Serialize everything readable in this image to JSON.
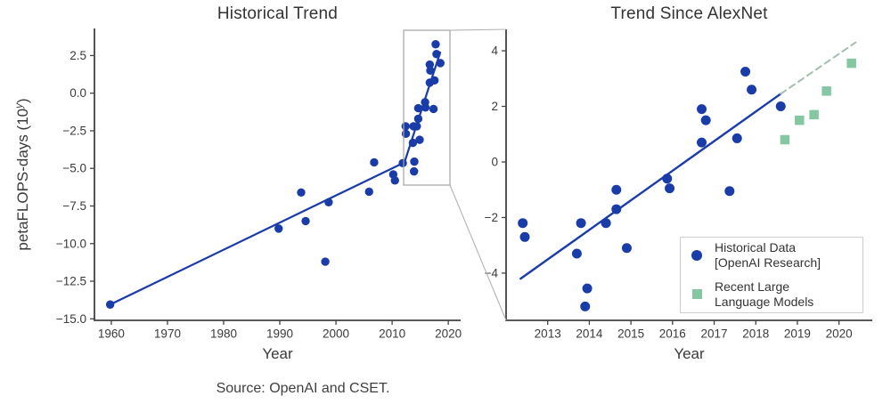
{
  "figure": {
    "source_note": "Source: OpenAI and CSET.",
    "ylabel": {
      "prefix": "petaFLOPS-days (10",
      "sup": "y",
      "suffix": ")"
    }
  },
  "colors": {
    "dot_blue": "#1a3ca8",
    "trend_blue": "#1a3ca8",
    "square_green": "#85c6a3",
    "dashed_green": "#a2bfae",
    "spine": "#424242",
    "tick_text": "#3a3a3a",
    "inset_box": "#a3a3a3",
    "connector": "#b3b3b3",
    "legend_border": "#cccccc"
  },
  "legend": {
    "position": "lower right",
    "items": [
      {
        "marker": "circle",
        "color": "#1a3ca8",
        "lines": [
          "Historical Data",
          "[OpenAI Research]"
        ]
      },
      {
        "marker": "square",
        "color": "#85c6a3",
        "lines": [
          "Recent Large",
          "Language Models"
        ]
      }
    ]
  },
  "chart_data": [
    {
      "type": "scatter",
      "title": "Historical Trend",
      "xlabel": "Year",
      "ylabel": "petaFLOPS-days (10^y)",
      "grid": false,
      "xlim": [
        1957.0,
        2022.2
      ],
      "ylim": [
        -15.1,
        4.3
      ],
      "xticks": [
        {
          "v": 1960,
          "label": "1960"
        },
        {
          "v": 1970,
          "label": "1970"
        },
        {
          "v": 1980,
          "label": "1980"
        },
        {
          "v": 1990,
          "label": "1990"
        },
        {
          "v": 2000,
          "label": "2000"
        },
        {
          "v": 2010,
          "label": "2010"
        },
        {
          "v": 2020,
          "label": "2020"
        }
      ],
      "yticks": [
        {
          "v": 2.5,
          "label": "2.5"
        },
        {
          "v": 0,
          "label": "0.0"
        },
        {
          "v": -2.5,
          "label": "−2.5"
        },
        {
          "v": -5,
          "label": "−5.0"
        },
        {
          "v": -7.5,
          "label": "−7.5"
        },
        {
          "v": -10,
          "label": "−10.0"
        },
        {
          "v": -12.5,
          "label": "−12.5"
        },
        {
          "v": -15,
          "label": "−15.0"
        }
      ],
      "series": [
        {
          "name": "Historical Data [OpenAI Research]",
          "marker": "circle",
          "color": "#1a3ca8",
          "size": 4.7,
          "points": [
            [
              1959.8,
              -14.05
            ],
            [
              1989.8,
              -9.0
            ],
            [
              1993.8,
              -6.6
            ],
            [
              1994.6,
              -8.5
            ],
            [
              1998.1,
              -11.2
            ],
            [
              1998.7,
              -7.25
            ],
            [
              2005.9,
              -6.55
            ],
            [
              2006.8,
              -4.6
            ],
            [
              2010.2,
              -5.4
            ],
            [
              2010.5,
              -5.8
            ],
            [
              2011.9,
              -4.65
            ],
            [
              2012.4,
              -2.2
            ],
            [
              2012.45,
              -2.7
            ],
            [
              2013.7,
              -3.3
            ],
            [
              2013.8,
              -2.2
            ],
            [
              2013.9,
              -5.2
            ],
            [
              2013.95,
              -4.55
            ],
            [
              2014.4,
              -2.2
            ],
            [
              2014.65,
              -1.0
            ],
            [
              2014.65,
              -1.7
            ],
            [
              2014.9,
              -3.1
            ],
            [
              2015.87,
              -0.6
            ],
            [
              2015.93,
              -0.95
            ],
            [
              2016.7,
              0.7
            ],
            [
              2016.7,
              1.9
            ],
            [
              2016.8,
              1.5
            ],
            [
              2017.37,
              -1.05
            ],
            [
              2017.55,
              0.85
            ],
            [
              2017.75,
              3.25
            ],
            [
              2017.9,
              2.6
            ],
            [
              2018.6,
              2.0
            ]
          ]
        }
      ],
      "trend": [
        {
          "from": [
            1959.8,
            -14.05
          ],
          "to": [
            2012.2,
            -4.6
          ],
          "dash": false,
          "color": "#1a3ca8",
          "width": 2.2
        },
        {
          "from": [
            2012.2,
            -4.6
          ],
          "to": [
            2018.55,
            2.7
          ],
          "dash": false,
          "color": "#1a3ca8",
          "width": 2.2
        }
      ],
      "inset_box": {
        "x0": 2012.05,
        "x1": 2020.3,
        "y_top": 4.18,
        "y_bottom": -6.11
      }
    },
    {
      "type": "scatter",
      "title": "Trend Since AlexNet",
      "xlabel": "Year",
      "ylabel": "",
      "grid": false,
      "legend_position": "lower right",
      "xlim": [
        2012.0,
        2020.8
      ],
      "ylim": [
        -5.7,
        4.77
      ],
      "xticks": [
        {
          "v": 2013,
          "label": "2013"
        },
        {
          "v": 2014,
          "label": "2014"
        },
        {
          "v": 2015,
          "label": "2015"
        },
        {
          "v": 2016,
          "label": "2016"
        },
        {
          "v": 2017,
          "label": "2017"
        },
        {
          "v": 2018,
          "label": "2018"
        },
        {
          "v": 2019,
          "label": "2019"
        },
        {
          "v": 2020,
          "label": "2020"
        }
      ],
      "yticks": [
        {
          "v": 4,
          "label": "4"
        },
        {
          "v": 2,
          "label": "2"
        },
        {
          "v": 0,
          "label": "0"
        },
        {
          "v": -2,
          "label": "−2"
        },
        {
          "v": -4,
          "label": "−4"
        }
      ],
      "series": [
        {
          "name": "Historical Data [OpenAI Research]",
          "marker": "circle",
          "color": "#1a3ca8",
          "size": 5.5,
          "points": [
            [
              2012.4,
              -2.2
            ],
            [
              2012.45,
              -2.7
            ],
            [
              2013.7,
              -3.3
            ],
            [
              2013.8,
              -2.2
            ],
            [
              2013.9,
              -5.2
            ],
            [
              2013.95,
              -4.55
            ],
            [
              2014.4,
              -2.2
            ],
            [
              2014.65,
              -1.0
            ],
            [
              2014.65,
              -1.7
            ],
            [
              2014.9,
              -3.1
            ],
            [
              2015.87,
              -0.6
            ],
            [
              2015.93,
              -0.95
            ],
            [
              2016.7,
              0.7
            ],
            [
              2016.7,
              1.9
            ],
            [
              2016.8,
              1.5
            ],
            [
              2017.37,
              -1.05
            ],
            [
              2017.55,
              0.85
            ],
            [
              2017.75,
              3.25
            ],
            [
              2017.9,
              2.6
            ],
            [
              2018.6,
              2.0
            ]
          ]
        },
        {
          "name": "Recent Large Language Models",
          "marker": "square",
          "color": "#85c6a3",
          "size": 10.5,
          "points": [
            [
              2018.7,
              0.8
            ],
            [
              2019.05,
              1.5
            ],
            [
              2019.4,
              1.7
            ],
            [
              2019.7,
              2.55
            ],
            [
              2020.3,
              3.55
            ]
          ]
        }
      ],
      "trend": [
        {
          "from": [
            2012.35,
            -4.2
          ],
          "to": [
            2018.6,
            2.45
          ],
          "dash": false,
          "color": "#1a3ca8",
          "width": 2.4
        },
        {
          "from": [
            2018.6,
            2.45
          ],
          "to": [
            2020.4,
            4.3
          ],
          "dash": true,
          "color": "#a2bfae",
          "width": 2.0
        }
      ]
    }
  ]
}
